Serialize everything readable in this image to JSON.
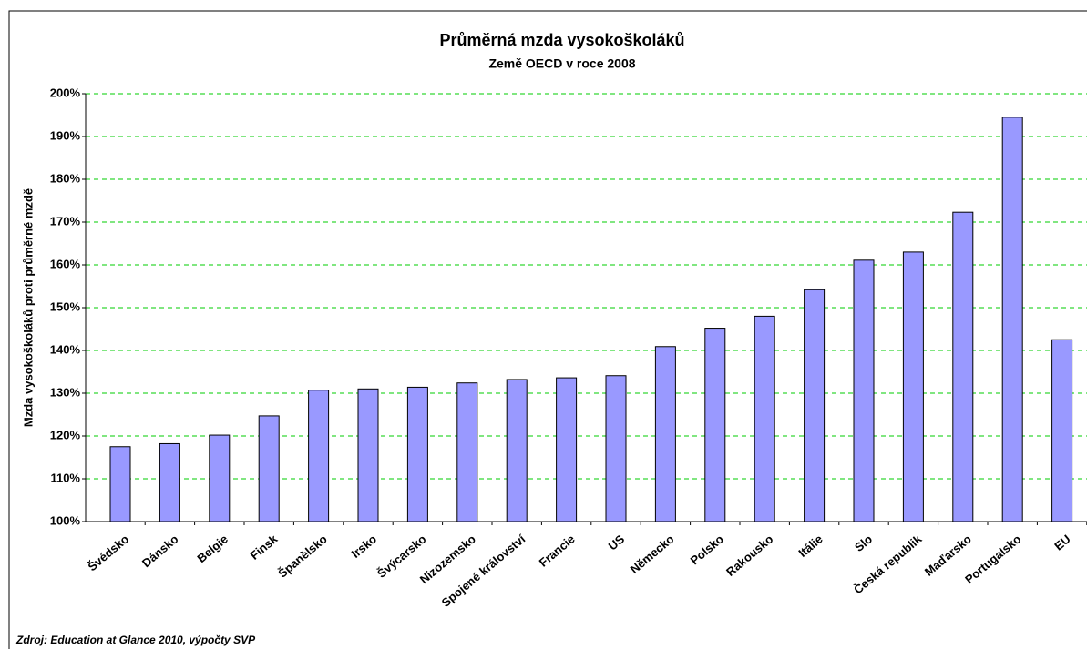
{
  "chart_data": {
    "type": "bar",
    "title": "Průměrná mzda vysokoškoláků",
    "subtitle": "Země OECD v roce 2008",
    "y_label": "Mzda vysokoškoláků proti průměrné mzdě",
    "source": "Zdroj: Education at Glance 2010, výpočty SVP",
    "categories": [
      "Švédsko",
      "Dánsko",
      "Belgie",
      "Finsk",
      "Španělsko",
      "Irsko",
      "Švýcarsko",
      "Nizozemsko",
      "Spojené království",
      "Francie",
      "US",
      "Německo",
      "Polsko",
      "Rakousko",
      "Itálie",
      "Slo",
      "Česká republik",
      "Maďarsko",
      "Portugalsko",
      "EU"
    ],
    "values": [
      117.5,
      118.2,
      120.2,
      124.7,
      130.7,
      131,
      131.4,
      132.4,
      133.2,
      133.6,
      134.1,
      140.9,
      145.2,
      148,
      154.2,
      161.1,
      163,
      172.3,
      194.5,
      142.5
    ],
    "color": "#9999ff",
    "ylim": [
      100,
      200
    ],
    "yticks": [
      {
        "value": 100,
        "label": "100%"
      },
      {
        "value": 110,
        "label": "110%"
      },
      {
        "value": 120,
        "label": "120%"
      },
      {
        "value": 130,
        "label": "130%"
      },
      {
        "value": 140,
        "label": "140%"
      },
      {
        "value": 150,
        "label": "150%"
      },
      {
        "value": 160,
        "label": "160%"
      },
      {
        "value": 170,
        "label": "170%"
      },
      {
        "value": 180,
        "label": "180%"
      },
      {
        "value": 190,
        "label": "190%"
      },
      {
        "value": 200,
        "label": "200%"
      }
    ],
    "grid": true
  }
}
